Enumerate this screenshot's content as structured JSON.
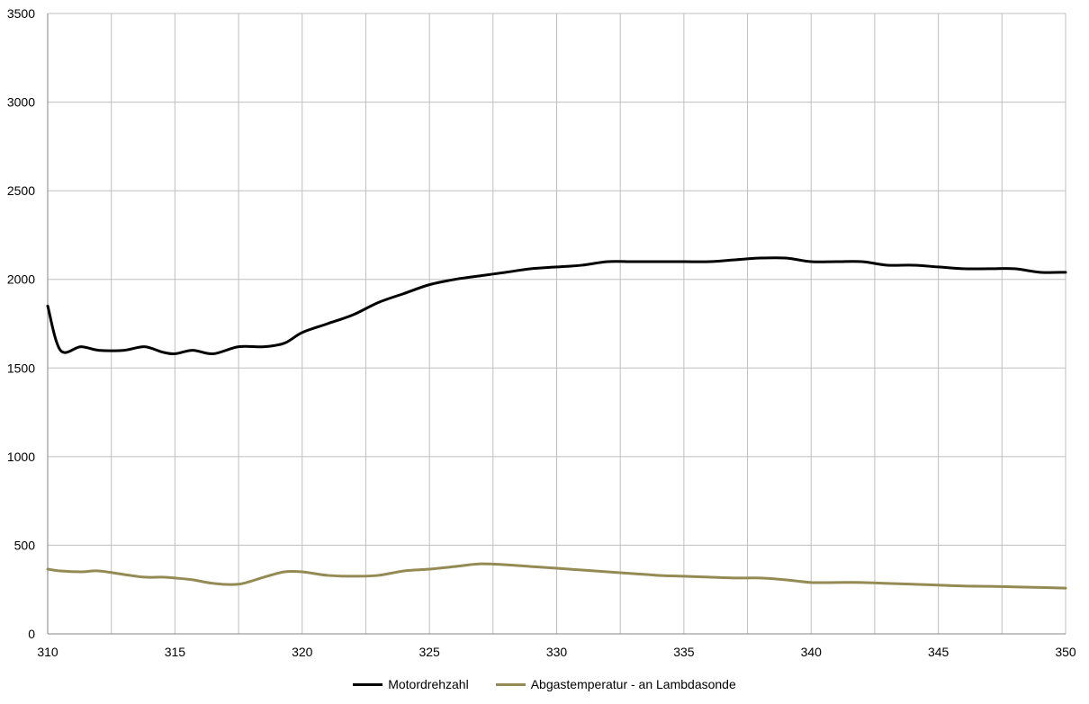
{
  "chart_data": {
    "type": "line",
    "title": "",
    "xlabel": "",
    "ylabel": "",
    "xlim": [
      310,
      350
    ],
    "ylim": [
      0,
      3500
    ],
    "x_ticks": [
      "310",
      "315",
      "320",
      "325",
      "330",
      "335",
      "340",
      "345",
      "350"
    ],
    "y_ticks": [
      "0",
      "500",
      "1000",
      "1500",
      "2000",
      "2500",
      "3000",
      "3500"
    ],
    "grid": true,
    "legend_position": "bottom",
    "x": [
      310,
      310.5,
      311.3,
      312,
      313,
      313.8,
      314.5,
      315,
      315.7,
      316.5,
      317.5,
      318.5,
      319.3,
      320,
      321,
      322,
      323,
      324,
      325,
      326,
      327,
      328,
      329,
      330,
      331,
      332,
      333,
      334,
      335,
      336,
      337,
      338,
      339,
      340,
      341,
      342,
      343,
      344,
      345,
      346,
      347,
      348,
      349,
      350
    ],
    "series": [
      {
        "name": "Motordrehzahl",
        "color": "#000000",
        "values": [
          1850,
          1600,
          1620,
          1600,
          1600,
          1620,
          1590,
          1580,
          1600,
          1580,
          1620,
          1620,
          1640,
          1700,
          1750,
          1800,
          1870,
          1920,
          1970,
          2000,
          2020,
          2040,
          2060,
          2070,
          2080,
          2100,
          2100,
          2100,
          2100,
          2100,
          2110,
          2120,
          2120,
          2100,
          2100,
          2100,
          2080,
          2080,
          2070,
          2060,
          2060,
          2060,
          2040,
          2040
        ]
      },
      {
        "name": "Abgastemperatur - an Lambdasonde",
        "color": "#948a54",
        "values": [
          365,
          355,
          350,
          355,
          335,
          320,
          320,
          315,
          305,
          285,
          280,
          320,
          350,
          350,
          330,
          325,
          330,
          355,
          365,
          380,
          395,
          390,
          380,
          370,
          360,
          350,
          340,
          330,
          325,
          320,
          315,
          315,
          305,
          290,
          290,
          290,
          285,
          280,
          275,
          270,
          268,
          265,
          262,
          258
        ]
      }
    ]
  }
}
